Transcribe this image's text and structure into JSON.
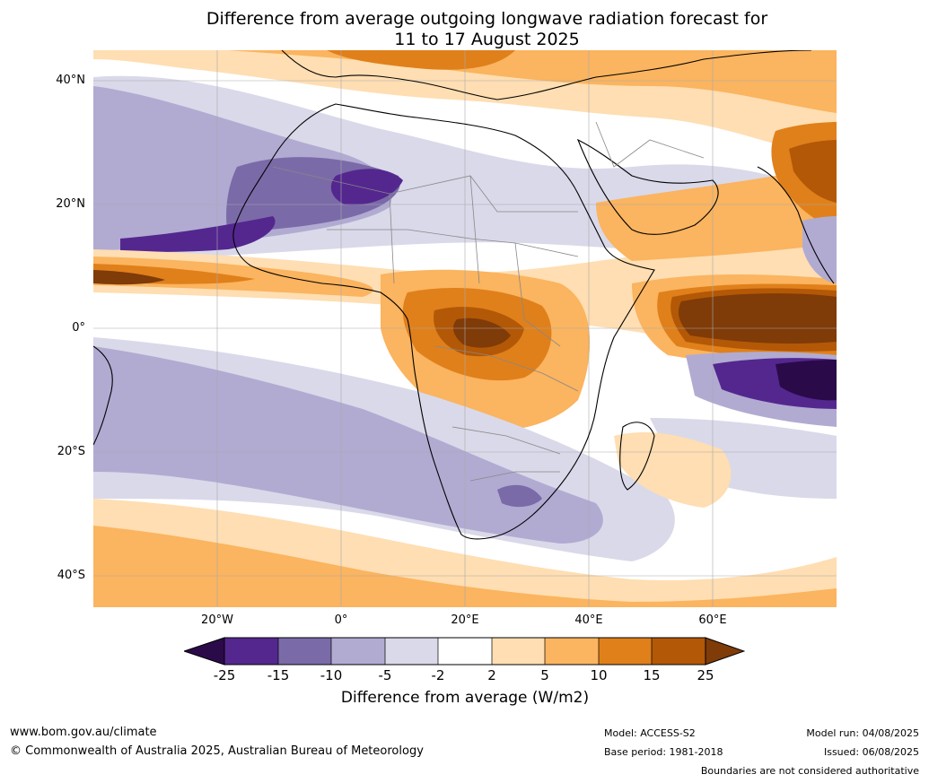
{
  "title_line1": "Difference from average outgoing longwave radiation forecast for",
  "title_line2": "11 to 17 August 2025",
  "map": {
    "lat_labels": [
      "40°N",
      "20°N",
      "0°",
      "20°S",
      "40°S"
    ],
    "lon_labels": [
      "20°W",
      "0°",
      "20°E",
      "40°E",
      "60°E"
    ],
    "colors": {
      "lt-25": "#2b0a4a",
      "m25_m15": "#54278f",
      "m15_m10": "#7b6aa8",
      "m10_m5": "#b1abd2",
      "m5_m2": "#d9d9ea",
      "m2_2": "#ffffff",
      "2_5": "#fedeb2",
      "5_10": "#fbb45f",
      "10_15": "#e0801b",
      "15_25": "#b35806",
      "gt25": "#7f3b08"
    }
  },
  "colorbar": {
    "labels": [
      "-25",
      "-15",
      "-10",
      "-5",
      "-2",
      "2",
      "5",
      "10",
      "15",
      "25"
    ],
    "title": "Difference from average (W/m2)"
  },
  "footer": {
    "website": "www.bom.gov.au/climate",
    "copyright": "© Commonwealth of Australia 2025, Australian Bureau of Meteorology",
    "model": "Model: ACCESS-S2",
    "base_period": "Base period: 1981-2018",
    "model_run": "Model run: 04/08/2025",
    "issued": "Issued: 06/08/2025",
    "disclaimer": "Boundaries are not considered authoritative"
  }
}
